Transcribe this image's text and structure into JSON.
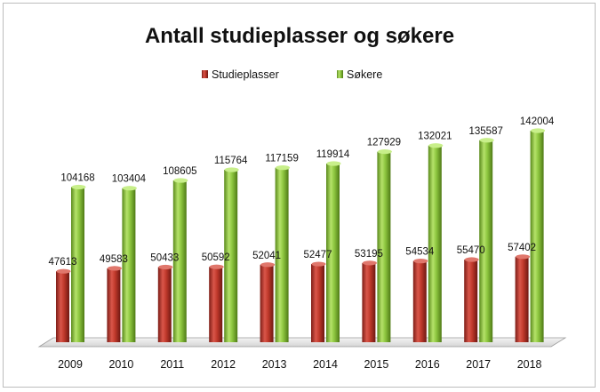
{
  "chart_data": {
    "type": "bar",
    "title": "Antall studieplasser og søkere",
    "xlabel": "",
    "ylabel": "",
    "categories": [
      "2009",
      "2010",
      "2011",
      "2012",
      "2013",
      "2014",
      "2015",
      "2016",
      "2017",
      "2018"
    ],
    "series": [
      {
        "name": "Studieplasser",
        "color": "#c0392b",
        "values": [
          47613,
          49583,
          50433,
          50592,
          52041,
          52477,
          53195,
          54534,
          55470,
          57402
        ]
      },
      {
        "name": "Søkere",
        "color": "#8dc63f",
        "values": [
          104168,
          103404,
          108605,
          115764,
          117159,
          119914,
          127929,
          132021,
          135587,
          142004
        ]
      }
    ],
    "ylim": [
      0,
      142004
    ],
    "grid": false,
    "legend_position": "top-center",
    "style": "3d-cylinder-bars"
  }
}
